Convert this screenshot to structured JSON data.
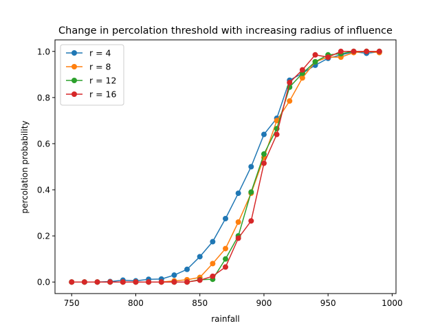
{
  "chart_data": {
    "type": "line",
    "title": "Change in percolation threshold with increasing radius of influence",
    "xlabel": "rainfall",
    "ylabel": "percolation probability",
    "xlim": [
      737,
      1003
    ],
    "ylim": [
      -0.05,
      1.05
    ],
    "xticks": [
      750,
      800,
      850,
      900,
      950,
      1000
    ],
    "yticks": [
      0.0,
      0.2,
      0.4,
      0.6,
      0.8,
      1.0
    ],
    "grid": false,
    "legend_position": "top-left",
    "x": [
      750,
      760,
      770,
      780,
      790,
      800,
      810,
      820,
      830,
      840,
      850,
      860,
      870,
      880,
      890,
      900,
      910,
      920,
      930,
      940,
      950,
      960,
      970,
      980,
      990
    ],
    "series": [
      {
        "name": "r = 4",
        "color": "#1f77b4",
        "values": [
          0.0,
          0.0,
          0.0,
          0.002,
          0.008,
          0.005,
          0.012,
          0.013,
          0.03,
          0.055,
          0.11,
          0.175,
          0.275,
          0.385,
          0.5,
          0.64,
          0.71,
          0.875,
          0.905,
          0.94,
          0.97,
          0.985,
          0.998,
          0.992,
          0.998
        ]
      },
      {
        "name": "r = 8",
        "color": "#ff7f0e",
        "values": [
          0.0,
          0.0,
          0.0,
          0.0,
          0.0,
          0.0,
          0.0,
          0.0,
          0.005,
          0.01,
          0.02,
          0.08,
          0.145,
          0.26,
          0.385,
          0.54,
          0.7,
          0.785,
          0.885,
          0.955,
          0.975,
          0.975,
          0.995,
          1.0,
          0.995
        ]
      },
      {
        "name": "r = 12",
        "color": "#2ca02c",
        "values": [
          0.0,
          0.0,
          0.0,
          0.0,
          0.0,
          0.0,
          0.0,
          0.0,
          0.0,
          0.0,
          0.01,
          0.012,
          0.1,
          0.2,
          0.39,
          0.555,
          0.665,
          0.845,
          0.905,
          0.955,
          0.985,
          0.99,
          1.0,
          1.0,
          1.0
        ]
      },
      {
        "name": "r = 16",
        "color": "#d62728",
        "values": [
          0.0,
          0.0,
          0.0,
          0.0,
          0.0,
          0.0,
          0.0,
          0.0,
          0.0,
          0.0,
          0.008,
          0.025,
          0.065,
          0.19,
          0.265,
          0.515,
          0.64,
          0.865,
          0.92,
          0.985,
          0.975,
          1.0,
          1.0,
          1.0,
          1.0
        ]
      }
    ]
  }
}
